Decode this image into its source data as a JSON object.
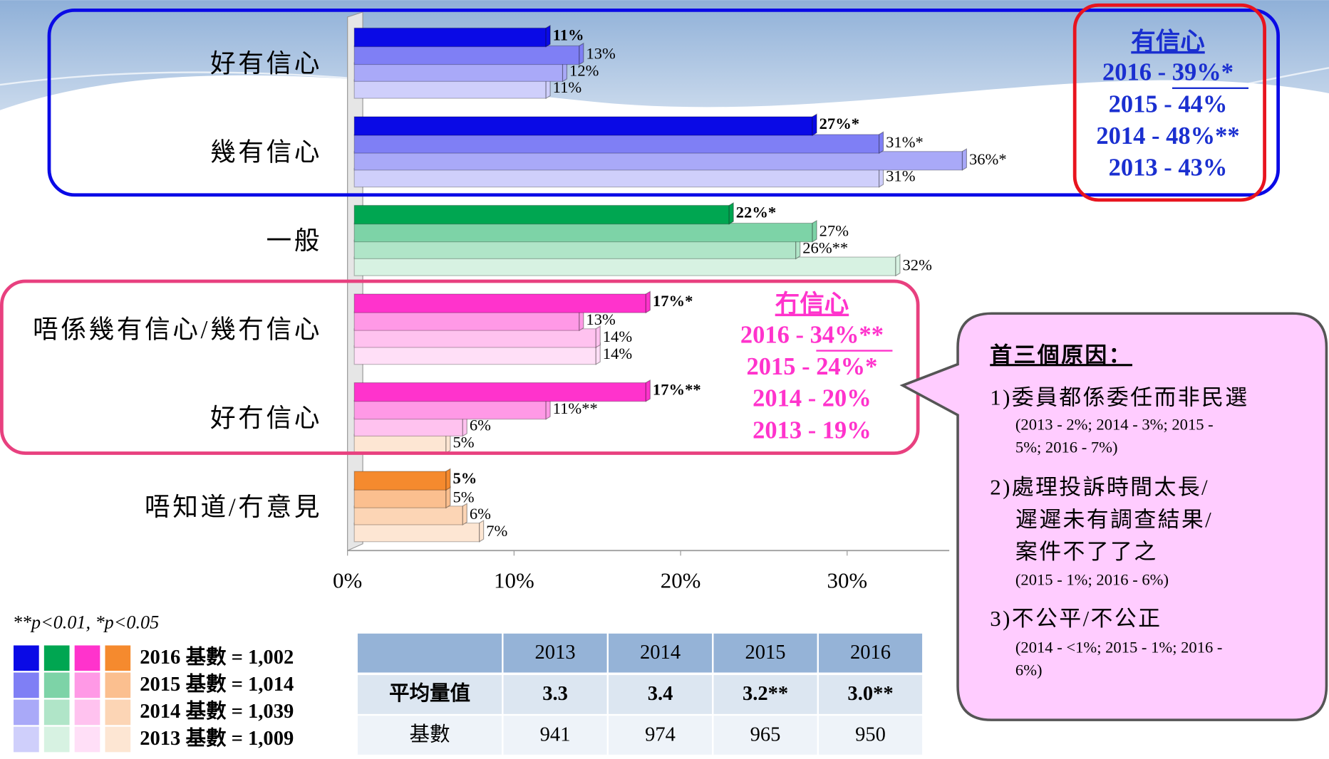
{
  "chart_data": {
    "type": "bar",
    "orientation": "horizontal",
    "categories": [
      "好有信心",
      "幾有信心",
      "一般",
      "唔係幾有信心/幾冇信心",
      "好冇信心",
      "唔知道/冇意見"
    ],
    "series": [
      {
        "name": "2016 基數 = 1,002",
        "colors": [
          "#0a0ae6",
          "#0a0ae6",
          "#00a651",
          "#ff33cc",
          "#ff33cc",
          "#f58a2e"
        ],
        "values": [
          11,
          27,
          22,
          17,
          17,
          5
        ],
        "value_labels": [
          "11%",
          "27%*",
          "22%*",
          "17%*",
          "17%**",
          "5%"
        ]
      },
      {
        "name": "2015 基數 = 1,014",
        "colors": [
          "#7f7ff5",
          "#7f7ff5",
          "#7dd3a7",
          "#ff99e6",
          "#ff99e6",
          "#fbbf8f"
        ],
        "values": [
          13,
          31,
          27,
          13,
          11,
          5
        ],
        "value_labels": [
          "13%",
          "31%*",
          "27%",
          "13%",
          "11%**",
          "5%"
        ]
      },
      {
        "name": "2014 基數 = 1,039",
        "colors": [
          "#a9a9f8",
          "#a9a9f8",
          "#b0e5c8",
          "#ffc2ef",
          "#ffc2ef",
          "#fcd5b5"
        ],
        "values": [
          12,
          36,
          26,
          14,
          6,
          6
        ],
        "value_labels": [
          "12%",
          "36%*",
          "26%**",
          "14%",
          "6%",
          "6%"
        ]
      },
      {
        "name": "2013 基數 = 1,009",
        "colors": [
          "#cfcffb",
          "#cfcffb",
          "#d7f2e2",
          "#ffdff7",
          "#fde6d3",
          "#fde6d3"
        ],
        "values": [
          11,
          31,
          32,
          14,
          5,
          7
        ],
        "value_labels": [
          "11%",
          "31%",
          "32%",
          "14%",
          "5%",
          "7%"
        ]
      }
    ],
    "xlim": [
      0,
      40
    ],
    "xticks": [
      {
        "value": 0,
        "label": "0%"
      },
      {
        "value": 10,
        "label": "10%"
      },
      {
        "value": 20,
        "label": "20%"
      },
      {
        "value": 30,
        "label": "30%"
      }
    ],
    "note": "**p<0.01, *p<0.05",
    "annotations": [
      {
        "title": "有信心",
        "lines": [
          "2016 - 39%*",
          "2015 - 44%",
          "2014 - 48%**",
          "2013 - 43%"
        ],
        "color": "#1a2fd0"
      },
      {
        "title": "冇信心",
        "lines": [
          "2016 - 34%**",
          "2015 - 24%*",
          "2014 - 20%",
          "2013 - 19%"
        ],
        "color": "#ff33cc"
      }
    ]
  },
  "callout": {
    "title": "首三個原因：",
    "items": [
      {
        "lines": [
          "1)委員都係委任而非民選"
        ],
        "sub": [
          "(2013 - 2%; 2014 - 3%; 2015 -",
          "5%; 2016 - 7%)"
        ]
      },
      {
        "lines": [
          "2)處理投訴時間太長/",
          "遲遲未有調查結果/",
          "案件不了了之"
        ],
        "sub": [
          "(2015 - 1%; 2016 - 6%)"
        ]
      },
      {
        "lines": [
          "3)不公平/不公正"
        ],
        "sub": [
          "(2014 - <1%; 2015 - 1%; 2016 -",
          "6%)"
        ]
      }
    ]
  },
  "table": {
    "header": [
      "2013",
      "2014",
      "2015",
      "2016"
    ],
    "rows": [
      {
        "label": "平均量值",
        "values": [
          3.3,
          3.4,
          "3.2**",
          "3.0**"
        ]
      },
      {
        "label": "基數",
        "values": [
          941,
          974,
          965,
          950
        ]
      }
    ]
  }
}
